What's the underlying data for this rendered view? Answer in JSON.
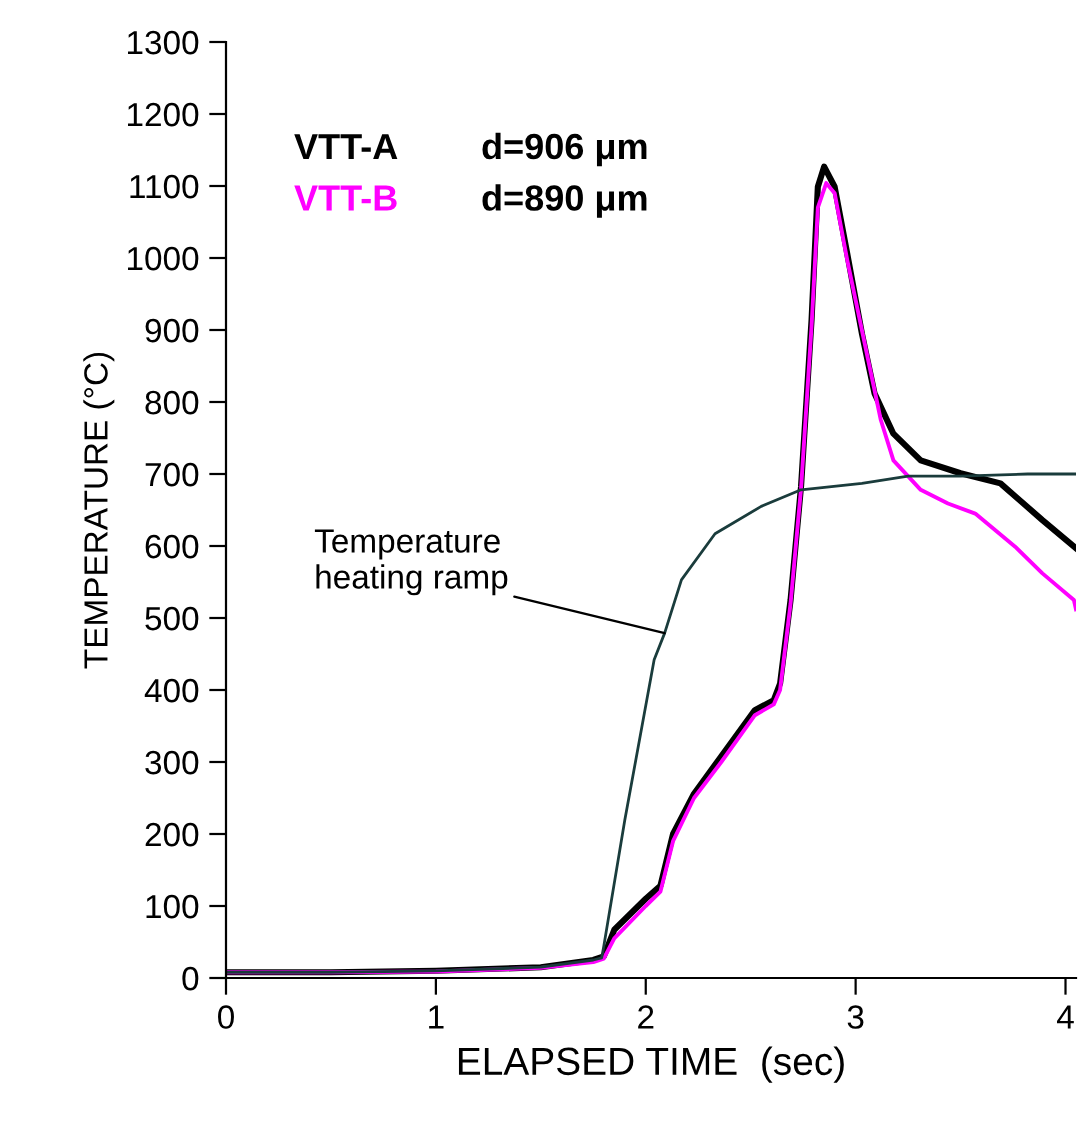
{
  "chart_data": {
    "type": "line",
    "xlabel": "ELAPSED TIME  (sec)",
    "ylabel": "TEMPERATURE (°C)",
    "xlim": [
      0,
      4.05
    ],
    "ylim": [
      0,
      1300
    ],
    "xticks": [
      0,
      1,
      2,
      3,
      4
    ],
    "yticks": [
      0,
      100,
      200,
      300,
      400,
      500,
      600,
      700,
      800,
      900,
      1000,
      1100,
      1200,
      1300
    ],
    "grid": false,
    "legend": false,
    "marker": "none",
    "line_style": "solid",
    "series": [
      {
        "name": "VTT-A",
        "color": "#000000",
        "x": [
          0,
          0.5,
          1.0,
          1.5,
          1.75,
          1.8,
          1.85,
          2.0,
          2.07,
          2.13,
          2.23,
          2.36,
          2.52,
          2.61,
          2.64,
          2.69,
          2.74,
          2.79,
          2.82,
          2.85,
          2.9,
          2.96,
          3.03,
          3.09,
          3.18,
          3.31,
          3.5,
          3.69,
          3.89,
          4.05
        ],
        "values": [
          8,
          8,
          10,
          15,
          25,
          30,
          67,
          110,
          128,
          200,
          256,
          308,
          372,
          386,
          409,
          525,
          683,
          914,
          1099,
          1127,
          1099,
          1006,
          895,
          812,
          756,
          719,
          701,
          687,
          636,
          597
        ]
      },
      {
        "name": "VTT-B",
        "color": "#ff00ff",
        "x": [
          0,
          0.5,
          1.0,
          1.5,
          1.75,
          1.8,
          1.85,
          2.0,
          2.07,
          2.13,
          2.23,
          2.36,
          2.52,
          2.61,
          2.64,
          2.69,
          2.74,
          2.79,
          2.82,
          2.86,
          2.9,
          2.96,
          3.06,
          3.12,
          3.18,
          3.31,
          3.44,
          3.57,
          3.76,
          3.89,
          4.04,
          4.05
        ],
        "values": [
          8,
          8,
          9,
          14,
          22,
          27,
          55,
          100,
          120,
          190,
          250,
          300,
          365,
          380,
          400,
          520,
          680,
          905,
          1070,
          1104,
          1090,
          997,
          858,
          775,
          719,
          678,
          659,
          645,
          599,
          562,
          525,
          512
        ]
      },
      {
        "color": "#1a3c3c",
        "x": [
          0,
          0.5,
          1.0,
          1.5,
          1.75,
          1.79,
          1.8,
          1.9,
          2.04,
          2.09,
          2.17,
          2.33,
          2.55,
          2.74,
          3.03,
          3.25,
          3.5,
          3.82,
          4.05
        ],
        "values": [
          8,
          8,
          10,
          15,
          25,
          28,
          44,
          219,
          442,
          479,
          553,
          617,
          655,
          678,
          687,
          697,
          697,
          700,
          700
        ]
      }
    ],
    "annotations": [
      "d=906 μm",
      "d=890 μm",
      {
        "text": "Temperature\nheating ramp",
        "x": 2.09,
        "y": 479
      }
    ]
  }
}
